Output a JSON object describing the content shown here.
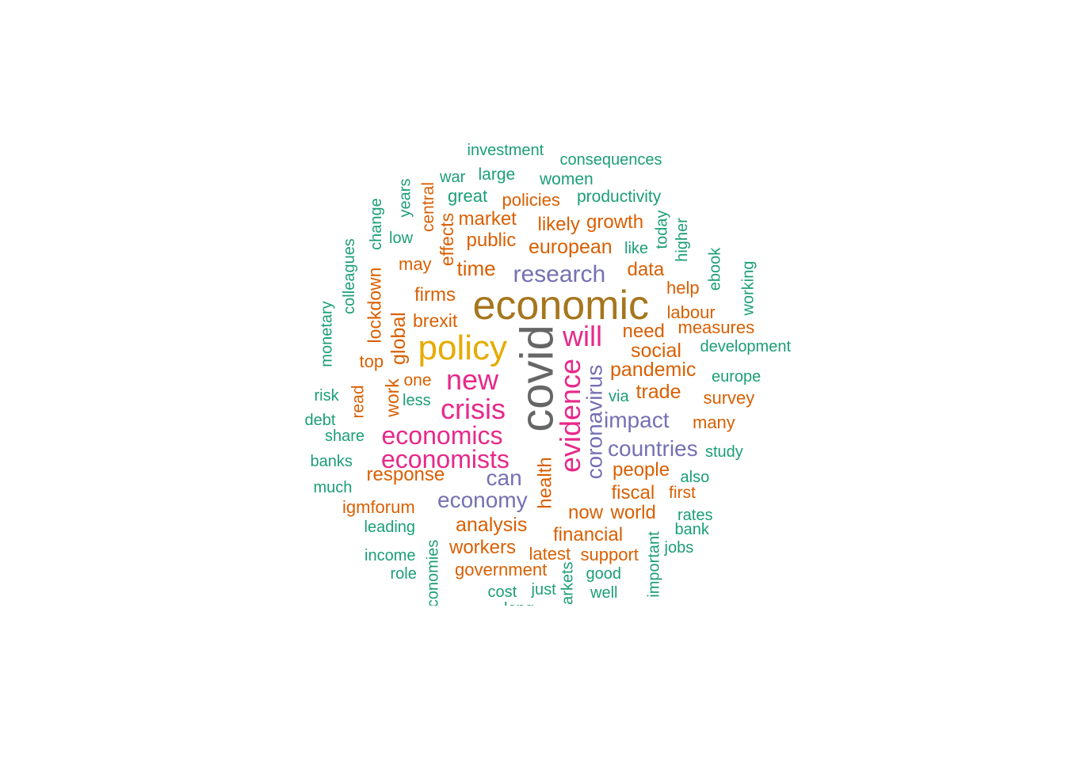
{
  "palette": {
    "teal": "#1b9e77",
    "orange": "#d95f02",
    "purple": "#7570b3",
    "magenta": "#e7298a",
    "olive": "#a6761d",
    "gold": "#e6ab02",
    "gray": "#666666"
  },
  "words": [
    {
      "text": "covid",
      "color": "gray"
    },
    {
      "text": "economic",
      "color": "olive"
    },
    {
      "text": "policy",
      "color": "gold"
    },
    {
      "text": "will",
      "color": "magenta"
    },
    {
      "text": "evidence",
      "color": "magenta"
    },
    {
      "text": "new",
      "color": "magenta"
    },
    {
      "text": "crisis",
      "color": "magenta"
    },
    {
      "text": "economics",
      "color": "magenta"
    },
    {
      "text": "economists",
      "color": "magenta"
    },
    {
      "text": "research",
      "color": "purple"
    },
    {
      "text": "coronavirus",
      "color": "purple"
    },
    {
      "text": "impact",
      "color": "purple"
    },
    {
      "text": "countries",
      "color": "purple"
    },
    {
      "text": "can",
      "color": "purple"
    },
    {
      "text": "economy",
      "color": "purple"
    },
    {
      "text": "european",
      "color": "orange"
    },
    {
      "text": "growth",
      "color": "orange"
    },
    {
      "text": "likely",
      "color": "orange"
    },
    {
      "text": "public",
      "color": "orange"
    },
    {
      "text": "market",
      "color": "orange"
    },
    {
      "text": "policies",
      "color": "orange"
    },
    {
      "text": "time",
      "color": "orange"
    },
    {
      "text": "firms",
      "color": "orange"
    },
    {
      "text": "brexit",
      "color": "orange"
    },
    {
      "text": "data",
      "color": "orange"
    },
    {
      "text": "need",
      "color": "orange"
    },
    {
      "text": "social",
      "color": "orange"
    },
    {
      "text": "pandemic",
      "color": "orange"
    },
    {
      "text": "trade",
      "color": "orange"
    },
    {
      "text": "people",
      "color": "orange"
    },
    {
      "text": "fiscal",
      "color": "orange"
    },
    {
      "text": "now",
      "color": "orange"
    },
    {
      "text": "world",
      "color": "orange"
    },
    {
      "text": "analysis",
      "color": "orange"
    },
    {
      "text": "financial",
      "color": "orange"
    },
    {
      "text": "workers",
      "color": "orange"
    },
    {
      "text": "latest",
      "color": "orange"
    },
    {
      "text": "support",
      "color": "orange"
    },
    {
      "text": "government",
      "color": "orange"
    },
    {
      "text": "response",
      "color": "orange"
    },
    {
      "text": "igmforum",
      "color": "orange"
    },
    {
      "text": "health",
      "color": "orange"
    },
    {
      "text": "global",
      "color": "orange"
    },
    {
      "text": "lockdown",
      "color": "orange"
    },
    {
      "text": "work",
      "color": "orange"
    },
    {
      "text": "effects",
      "color": "orange"
    },
    {
      "text": "central",
      "color": "orange"
    },
    {
      "text": "may",
      "color": "orange"
    },
    {
      "text": "top",
      "color": "orange"
    },
    {
      "text": "one",
      "color": "orange"
    },
    {
      "text": "read",
      "color": "orange"
    },
    {
      "text": "help",
      "color": "orange"
    },
    {
      "text": "labour",
      "color": "orange"
    },
    {
      "text": "measures",
      "color": "orange"
    },
    {
      "text": "survey",
      "color": "orange"
    },
    {
      "text": "many",
      "color": "orange"
    },
    {
      "text": "first",
      "color": "orange"
    },
    {
      "text": "investment",
      "color": "teal"
    },
    {
      "text": "consequences",
      "color": "teal"
    },
    {
      "text": "war",
      "color": "teal"
    },
    {
      "text": "large",
      "color": "teal"
    },
    {
      "text": "women",
      "color": "teal"
    },
    {
      "text": "great",
      "color": "teal"
    },
    {
      "text": "productivity",
      "color": "teal"
    },
    {
      "text": "low",
      "color": "teal"
    },
    {
      "text": "like",
      "color": "teal"
    },
    {
      "text": "development",
      "color": "teal"
    },
    {
      "text": "europe",
      "color": "teal"
    },
    {
      "text": "via",
      "color": "teal"
    },
    {
      "text": "less",
      "color": "teal"
    },
    {
      "text": "risk",
      "color": "teal"
    },
    {
      "text": "debt",
      "color": "teal"
    },
    {
      "text": "share",
      "color": "teal"
    },
    {
      "text": "banks",
      "color": "teal"
    },
    {
      "text": "much",
      "color": "teal"
    },
    {
      "text": "leading",
      "color": "teal"
    },
    {
      "text": "income",
      "color": "teal"
    },
    {
      "text": "role",
      "color": "teal"
    },
    {
      "text": "cost",
      "color": "teal"
    },
    {
      "text": "just",
      "color": "teal"
    },
    {
      "text": "good",
      "color": "teal"
    },
    {
      "text": "well",
      "color": "teal"
    },
    {
      "text": "study",
      "color": "teal"
    },
    {
      "text": "also",
      "color": "teal"
    },
    {
      "text": "rates",
      "color": "teal"
    },
    {
      "text": "bank",
      "color": "teal"
    },
    {
      "text": "jobs",
      "color": "teal"
    },
    {
      "text": "long",
      "color": "teal"
    },
    {
      "text": "years",
      "color": "teal"
    },
    {
      "text": "change",
      "color": "teal"
    },
    {
      "text": "colleagues",
      "color": "teal"
    },
    {
      "text": "monetary",
      "color": "teal"
    },
    {
      "text": "today",
      "color": "teal"
    },
    {
      "text": "higher",
      "color": "teal"
    },
    {
      "text": "ebook",
      "color": "teal"
    },
    {
      "text": "working",
      "color": "teal"
    },
    {
      "text": "economies",
      "color": "teal"
    },
    {
      "text": "markets",
      "color": "teal"
    },
    {
      "text": "important",
      "color": "teal"
    }
  ]
}
